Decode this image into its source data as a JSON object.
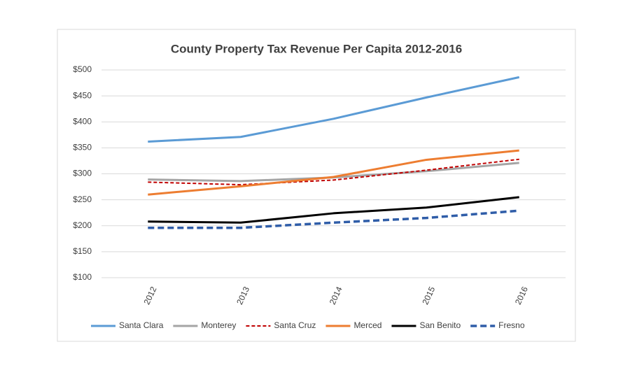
{
  "chart_data": {
    "type": "line",
    "title": "County Property Tax Revenue Per Capita 2012-2016",
    "categories": [
      "2012",
      "2013",
      "2014",
      "2015",
      "2016"
    ],
    "ylim": [
      100,
      500
    ],
    "yticks": [
      {
        "value": 100,
        "label": "$100"
      },
      {
        "value": 150,
        "label": "$150"
      },
      {
        "value": 200,
        "label": "$200"
      },
      {
        "value": 250,
        "label": "$250"
      },
      {
        "value": 300,
        "label": "$300"
      },
      {
        "value": 350,
        "label": "$350"
      },
      {
        "value": 400,
        "label": "$400"
      },
      {
        "value": 450,
        "label": "$450"
      },
      {
        "value": 500,
        "label": "$500"
      }
    ],
    "grid": true,
    "legend": "bottom",
    "series": [
      {
        "name": "Santa Clara",
        "color": "#5b9bd5",
        "dashed": false,
        "values": [
          362,
          371,
          406,
          447,
          486
        ]
      },
      {
        "name": "Monterey",
        "color": "#a5a5a5",
        "dashed": false,
        "values": [
          289,
          286,
          293,
          305,
          321
        ]
      },
      {
        "name": "Santa Cruz",
        "color": "#c00000",
        "dashed": true,
        "values": [
          284,
          279,
          288,
          307,
          328
        ]
      },
      {
        "name": "Merced",
        "color": "#ed7d31",
        "dashed": false,
        "values": [
          260,
          276,
          294,
          327,
          345
        ]
      },
      {
        "name": "San Benito",
        "color": "#000000",
        "dashed": false,
        "values": [
          208,
          206,
          224,
          235,
          255
        ]
      },
      {
        "name": "Fresno",
        "color": "#2f5da8",
        "dashed": true,
        "values": [
          196,
          196,
          206,
          215,
          229
        ]
      }
    ]
  }
}
